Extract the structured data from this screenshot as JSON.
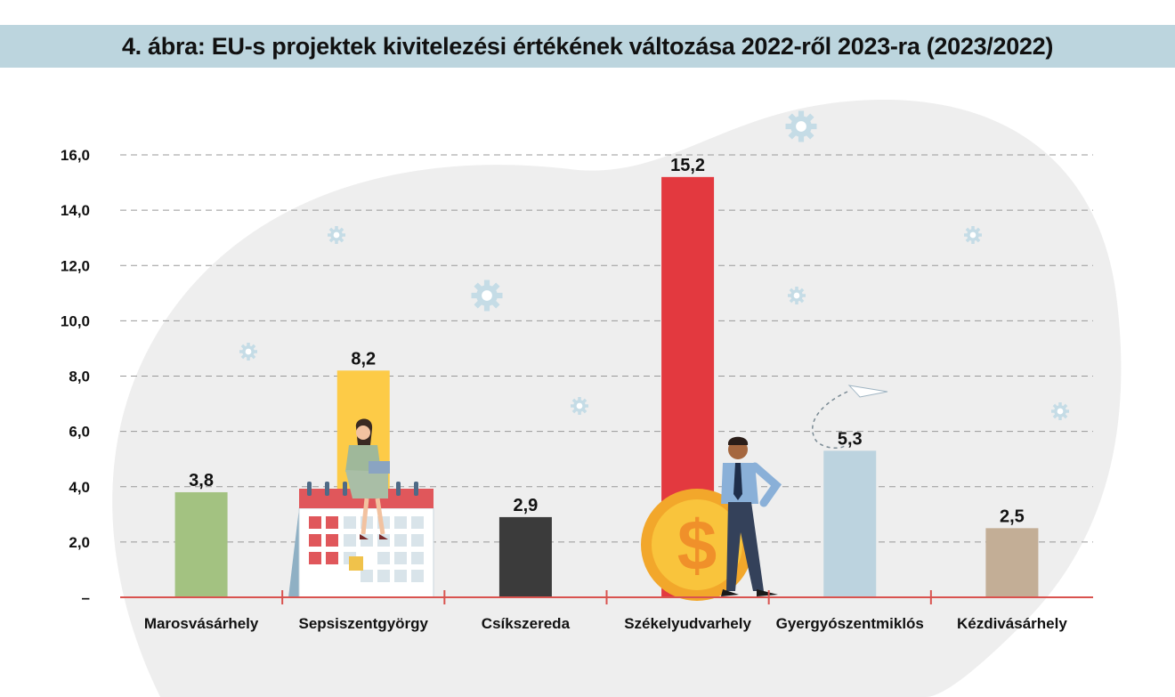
{
  "colors": {
    "title_bg": "#bcd5de",
    "axis_line": "#d9534f",
    "grid": "#999999",
    "blob": "#eeeeee",
    "gear": "#c5dce6"
  },
  "chart_data": {
    "type": "bar",
    "title": "4. ábra: EU-s projektek kivitelezési értékének változása 2022-ről 2023-ra (2023/2022)",
    "categories": [
      "Marosvásárhely",
      "Sepsiszentgyörgy",
      "Csíkszereda",
      "Székelyudvarhely",
      "Gyergyószentmiklós",
      "Kézdivásárhely"
    ],
    "values": [
      3.8,
      8.2,
      2.9,
      15.2,
      5.3,
      2.5
    ],
    "data_labels": [
      "3,8",
      "8,2",
      "2,9",
      "15,2",
      "5,3",
      "2,5"
    ],
    "bar_colors": [
      "#a3c281",
      "#fdcb47",
      "#3b3b3b",
      "#e3393f",
      "#bcd3df",
      "#c3ae96"
    ],
    "ylim": [
      0,
      16
    ],
    "y_ticks": [
      0,
      2,
      4,
      6,
      8,
      10,
      12,
      14,
      16
    ],
    "y_tick_labels": [
      "–",
      "2,0",
      "4,0",
      "6,0",
      "8,0",
      "10,0",
      "12,0",
      "14,0",
      "16,0"
    ],
    "grid": true,
    "grid_style": "dashed",
    "xlabel": "",
    "ylabel": ""
  }
}
